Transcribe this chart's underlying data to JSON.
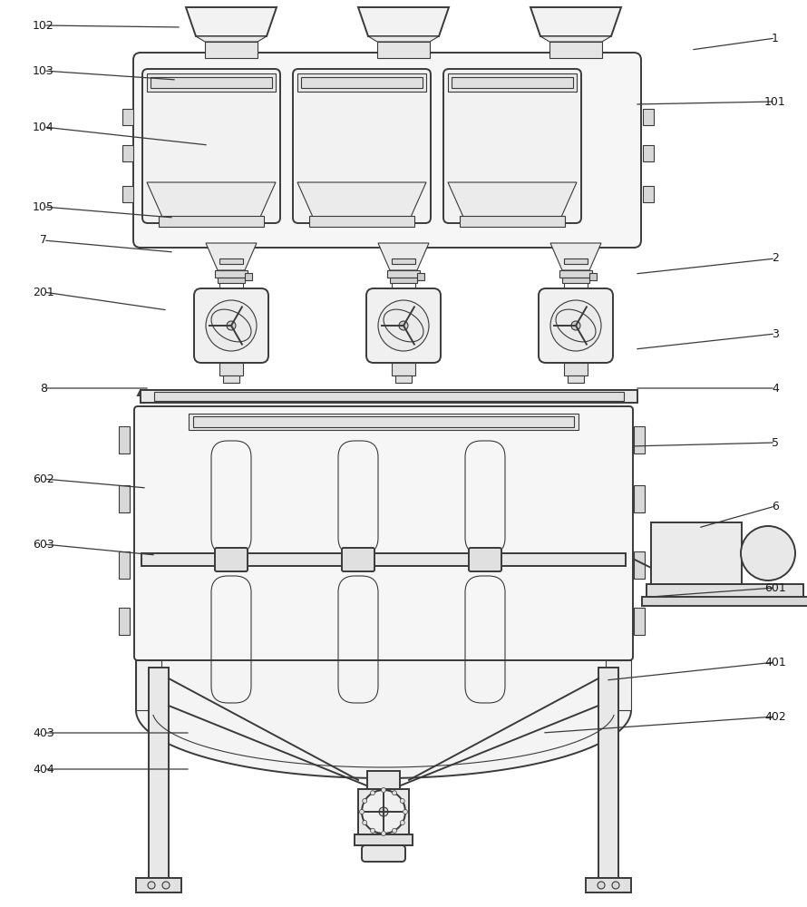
{
  "bg_color": "#ffffff",
  "lc": "#3a3a3a",
  "fc_light": "#f8f8f8",
  "fc_mid": "#efefef",
  "fc_dark": "#e0e0e0",
  "annotations": [
    [
      "1",
      [
        855,
        42
      ],
      [
        762,
        55
      ]
    ],
    [
      "2",
      [
        855,
        285
      ],
      [
        700,
        302
      ]
    ],
    [
      "3",
      [
        855,
        368
      ],
      [
        700,
        385
      ]
    ],
    [
      "4",
      [
        855,
        428
      ],
      [
        700,
        428
      ]
    ],
    [
      "5",
      [
        855,
        488
      ],
      [
        695,
        492
      ]
    ],
    [
      "6",
      [
        855,
        558
      ],
      [
        770,
        582
      ]
    ],
    [
      "7",
      [
        48,
        265
      ],
      [
        192,
        278
      ]
    ],
    [
      "8",
      [
        48,
        428
      ],
      [
        165,
        428
      ]
    ],
    [
      "101",
      [
        855,
        112
      ],
      [
        700,
        115
      ]
    ],
    [
      "102",
      [
        48,
        28
      ],
      [
        200,
        30
      ]
    ],
    [
      "103",
      [
        48,
        78
      ],
      [
        195,
        88
      ]
    ],
    [
      "104",
      [
        48,
        140
      ],
      [
        230,
        160
      ]
    ],
    [
      "105",
      [
        48,
        228
      ],
      [
        192,
        240
      ]
    ],
    [
      "201",
      [
        48,
        322
      ],
      [
        185,
        342
      ]
    ],
    [
      "401",
      [
        855,
        730
      ],
      [
        668,
        750
      ]
    ],
    [
      "402",
      [
        855,
        790
      ],
      [
        598,
        808
      ]
    ],
    [
      "403",
      [
        48,
        808
      ],
      [
        210,
        808
      ]
    ],
    [
      "404",
      [
        48,
        848
      ],
      [
        210,
        848
      ]
    ],
    [
      "601",
      [
        855,
        648
      ],
      [
        718,
        658
      ]
    ],
    [
      "602",
      [
        48,
        528
      ],
      [
        162,
        538
      ]
    ],
    [
      "603",
      [
        48,
        600
      ],
      [
        172,
        612
      ]
    ]
  ]
}
